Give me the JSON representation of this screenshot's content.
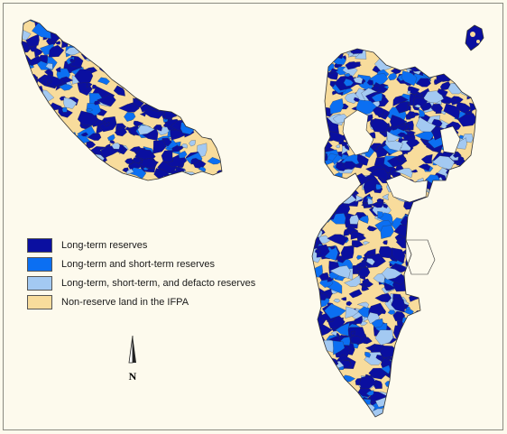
{
  "colors": {
    "background": "#fdfaed",
    "long_term": "#0a0fa0",
    "long_short": "#0b6ff2",
    "long_short_defacto": "#a3c9f2",
    "non_reserve": "#f8dc9c",
    "boundary": "#333333"
  },
  "legend": {
    "items": [
      {
        "label": "Long-term reserves",
        "color": "#0a0fa0"
      },
      {
        "label": "Long-term and short-term reserves",
        "color": "#0b6ff2"
      },
      {
        "label": "Long-term, short-term, and defacto reserves",
        "color": "#a3c9f2"
      },
      {
        "label": "Non-reserve land in the IFPA",
        "color": "#f8dc9c"
      }
    ]
  },
  "north_arrow": {
    "label": "N",
    "icon": "north-arrow-icon"
  }
}
